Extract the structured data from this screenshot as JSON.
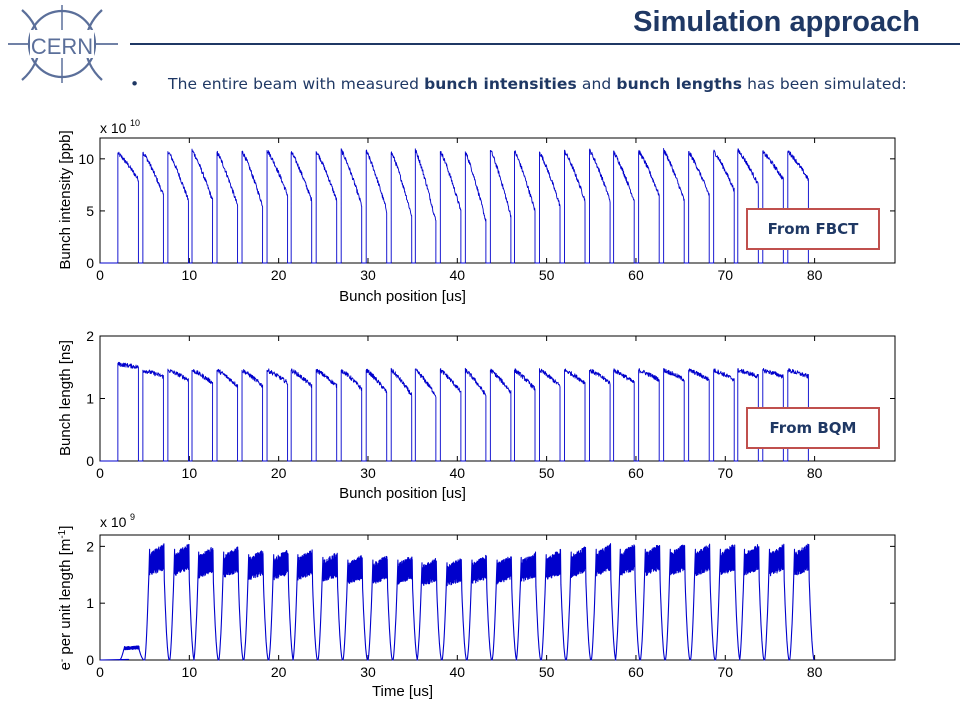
{
  "header": {
    "logo_text": "CERN",
    "title": "Simulation approach"
  },
  "bullet": {
    "prefix": "The entire beam with measured ",
    "bold1": "bunch intensities",
    "mid": " and ",
    "bold2": "bunch lengths",
    "suffix": " has been simulated:"
  },
  "tags": {
    "fbct": "From FBCT",
    "bqm": "From BQM"
  },
  "colors": {
    "title": "#1f3864",
    "series": "#0000cc",
    "tag_border": "#c0504d"
  },
  "chart_data": [
    {
      "type": "line",
      "xlabel": "Bunch position [us]",
      "ylabel": "Bunch intensity [ppb]",
      "exponent_label": "x 10",
      "exponent": "10",
      "xlim": [
        0,
        89
      ],
      "ylim": [
        0,
        12
      ],
      "xticks": [
        "0",
        "10",
        "20",
        "30",
        "40",
        "50",
        "60",
        "70",
        "80"
      ],
      "yticks": [
        "0",
        "5",
        "10"
      ],
      "series": [
        {
          "profile": "trains",
          "train_starts": [
            2.0,
            4.8,
            7.6,
            10.3,
            13.1,
            15.9,
            18.7,
            21.4,
            24.2,
            27.0,
            29.8,
            32.6,
            35.3,
            38.1,
            40.9,
            43.7,
            46.4,
            49.2,
            52.0,
            54.8,
            57.5,
            60.3,
            63.1,
            65.9,
            68.7,
            71.4,
            74.2,
            77.0
          ],
          "train_length_us": 2.3,
          "start_values": [
            10.5,
            10.6,
            10.7,
            10.8,
            10.6,
            10.7,
            10.8,
            10.6,
            10.7,
            10.8,
            10.7,
            10.6,
            10.8,
            10.7,
            10.6,
            10.8,
            10.7,
            10.6,
            10.7,
            10.8,
            10.6,
            10.7,
            10.8,
            10.6,
            10.7,
            10.8,
            10.6,
            10.7
          ],
          "end_values": [
            8.0,
            6.5,
            6.0,
            6.0,
            5.5,
            5.5,
            6.5,
            6.0,
            6.0,
            5.5,
            5.0,
            4.5,
            4.0,
            5.0,
            4.0,
            4.5,
            5.0,
            5.5,
            6.0,
            6.0,
            6.0,
            6.5,
            6.0,
            6.5,
            7.0,
            7.5,
            8.0,
            8.0
          ]
        }
      ]
    },
    {
      "type": "line",
      "xlabel": "Bunch position [us]",
      "ylabel": "Bunch length [ns]",
      "xlim": [
        0,
        89
      ],
      "ylim": [
        0,
        2
      ],
      "xticks": [
        "0",
        "10",
        "20",
        "30",
        "40",
        "50",
        "60",
        "70",
        "80"
      ],
      "yticks": [
        "0",
        "1",
        "2"
      ],
      "series": [
        {
          "profile": "trains",
          "train_starts": [
            2.0,
            4.8,
            7.6,
            10.3,
            13.1,
            15.9,
            18.7,
            21.4,
            24.2,
            27.0,
            29.8,
            32.6,
            35.3,
            38.1,
            40.9,
            43.7,
            46.4,
            49.2,
            52.0,
            54.8,
            57.5,
            60.3,
            63.1,
            65.9,
            68.7,
            71.4,
            74.2,
            77.0
          ],
          "train_length_us": 2.3,
          "start_values": [
            1.55,
            1.45,
            1.45,
            1.45,
            1.45,
            1.45,
            1.45,
            1.45,
            1.45,
            1.45,
            1.45,
            1.45,
            1.45,
            1.45,
            1.45,
            1.45,
            1.45,
            1.45,
            1.45,
            1.45,
            1.45,
            1.45,
            1.45,
            1.45,
            1.45,
            1.45,
            1.45,
            1.45
          ],
          "end_values": [
            1.5,
            1.35,
            1.3,
            1.25,
            1.2,
            1.2,
            1.25,
            1.2,
            1.2,
            1.15,
            1.1,
            1.05,
            1.05,
            1.1,
            1.05,
            1.1,
            1.15,
            1.2,
            1.25,
            1.25,
            1.25,
            1.3,
            1.3,
            1.3,
            1.3,
            1.35,
            1.35,
            1.35
          ]
        }
      ]
    },
    {
      "type": "line",
      "xlabel": "Time [us]",
      "ylabel": "e- per unit length [m-1]",
      "exponent_label": "x 10",
      "exponent": "9",
      "xlim": [
        0,
        89
      ],
      "ylim": [
        0,
        2.2
      ],
      "xticks": [
        "0",
        "10",
        "20",
        "30",
        "40",
        "50",
        "60",
        "70",
        "80"
      ],
      "yticks": [
        "0",
        "1",
        "2"
      ],
      "series": [
        {
          "profile": "buildup",
          "train_starts": [
            2.0,
            4.8,
            7.6,
            10.3,
            13.1,
            15.9,
            18.7,
            21.4,
            24.2,
            27.0,
            29.8,
            32.6,
            35.3,
            38.1,
            40.9,
            43.7,
            46.4,
            49.2,
            52.0,
            54.8,
            57.5,
            60.3,
            63.1,
            65.9,
            68.7,
            71.4,
            74.2,
            77.0
          ],
          "train_length_us": 2.3,
          "peak_values": [
            0.25,
            2.05,
            2.05,
            2.0,
            2.0,
            1.95,
            1.95,
            1.95,
            1.9,
            1.85,
            1.85,
            1.85,
            1.8,
            1.8,
            1.85,
            1.85,
            1.9,
            1.95,
            2.0,
            2.05,
            2.05,
            2.05,
            2.05,
            2.05,
            2.05,
            2.05,
            2.05,
            2.05
          ]
        }
      ]
    }
  ]
}
